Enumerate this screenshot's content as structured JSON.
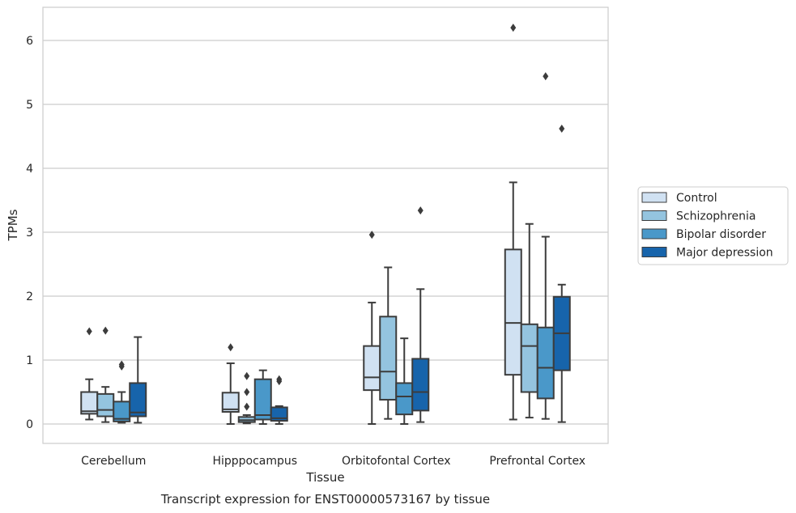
{
  "chart_data": {
    "type": "box",
    "xlabel": "Tissue",
    "ylabel": "TPMs",
    "caption": "Transcript expression for ENST00000573167 by tissue",
    "ylim": [
      -0.3,
      6.5
    ],
    "yticks": [
      "0",
      "1",
      "2",
      "3",
      "4",
      "5",
      "6"
    ],
    "grid": "horizontal",
    "legend_position": "right",
    "categories": [
      "Cerebellum",
      "Hipppocampus",
      "Orbitofontal Cortex",
      "Prefrontal Cortex"
    ],
    "series": [
      {
        "name": "Control",
        "color": "#d0e1f2",
        "boxes": [
          {
            "whislo": 0.07,
            "q1": 0.16,
            "med": 0.2,
            "q3": 0.5,
            "whishi": 0.7,
            "fliers": [
              1.45
            ]
          },
          {
            "whislo": 0.0,
            "q1": 0.19,
            "med": 0.23,
            "q3": 0.49,
            "whishi": 0.95,
            "fliers": [
              1.2
            ]
          },
          {
            "whislo": 0.0,
            "q1": 0.53,
            "med": 0.73,
            "q3": 1.22,
            "whishi": 1.9,
            "fliers": [
              2.96
            ]
          },
          {
            "whislo": 0.07,
            "q1": 0.77,
            "med": 1.58,
            "q3": 2.73,
            "whishi": 3.78,
            "fliers": [
              6.2
            ]
          }
        ]
      },
      {
        "name": "Schizophrenia",
        "color": "#94c4df",
        "boxes": [
          {
            "whislo": 0.03,
            "q1": 0.12,
            "med": 0.22,
            "q3": 0.47,
            "whishi": 0.58,
            "fliers": [
              1.46
            ]
          },
          {
            "whislo": 0.01,
            "q1": 0.03,
            "med": 0.06,
            "q3": 0.11,
            "whishi": 0.14,
            "fliers": [
              0.27,
              0.5,
              0.75
            ]
          },
          {
            "whislo": 0.08,
            "q1": 0.38,
            "med": 0.82,
            "q3": 1.68,
            "whishi": 2.45,
            "fliers": []
          },
          {
            "whislo": 0.1,
            "q1": 0.5,
            "med": 1.22,
            "q3": 1.56,
            "whishi": 3.13,
            "fliers": []
          }
        ]
      },
      {
        "name": "Bipolar disorder",
        "color": "#4a98c9",
        "boxes": [
          {
            "whislo": 0.02,
            "q1": 0.04,
            "med": 0.08,
            "q3": 0.35,
            "whishi": 0.5,
            "fliers": [
              0.9,
              0.93
            ]
          },
          {
            "whislo": 0.0,
            "q1": 0.07,
            "med": 0.14,
            "q3": 0.7,
            "whishi": 0.84,
            "fliers": []
          },
          {
            "whislo": 0.0,
            "q1": 0.15,
            "med": 0.43,
            "q3": 0.64,
            "whishi": 1.34,
            "fliers": []
          },
          {
            "whislo": 0.08,
            "q1": 0.4,
            "med": 0.88,
            "q3": 1.51,
            "whishi": 2.93,
            "fliers": [
              5.44
            ]
          }
        ]
      },
      {
        "name": "Major depression",
        "color": "#1764ab",
        "boxes": [
          {
            "whislo": 0.02,
            "q1": 0.12,
            "med": 0.18,
            "q3": 0.64,
            "whishi": 1.36,
            "fliers": []
          },
          {
            "whislo": 0.0,
            "q1": 0.05,
            "med": 0.09,
            "q3": 0.26,
            "whishi": 0.28,
            "fliers": [
              0.67,
              0.7
            ]
          },
          {
            "whislo": 0.03,
            "q1": 0.21,
            "med": 0.5,
            "q3": 1.02,
            "whishi": 2.11,
            "fliers": [
              3.34
            ]
          },
          {
            "whislo": 0.03,
            "q1": 0.84,
            "med": 1.42,
            "q3": 1.99,
            "whishi": 2.18,
            "fliers": [
              4.62
            ]
          }
        ]
      }
    ]
  }
}
